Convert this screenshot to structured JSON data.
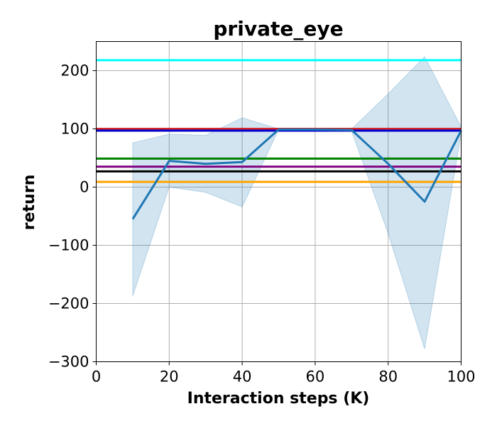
{
  "chart_data": {
    "type": "line",
    "title": "private_eye",
    "xlabel": "Interaction steps (K)",
    "ylabel": "return",
    "xlim": [
      0,
      100
    ],
    "ylim": [
      -300,
      250
    ],
    "xticks": [
      0,
      20,
      40,
      60,
      80,
      100
    ],
    "yticks": [
      -300,
      -200,
      -100,
      0,
      100,
      200
    ],
    "ytick_labels": [
      "−300",
      "−200",
      "−100",
      "0",
      "100",
      "200"
    ],
    "grid": true,
    "series": [
      {
        "color": "#1f77b4",
        "x": [
          10,
          20,
          30,
          40,
          50,
          60,
          70,
          80,
          90,
          100
        ],
        "y": [
          -55,
          45,
          40,
          43,
          99,
          99,
          98,
          40,
          -25,
          97
        ],
        "band_upper": [
          76,
          91,
          89,
          119,
          100,
          100,
          100,
          160,
          224,
          103
        ],
        "band_lower": [
          -187,
          0,
          -9,
          -34,
          99,
          99,
          96,
          -80,
          -278,
          92
        ]
      }
    ],
    "hlines": [
      {
        "y": 218,
        "color": "#00ffff"
      },
      {
        "y": 100,
        "color": "#d62728"
      },
      {
        "y": 97,
        "color": "#0000cc"
      },
      {
        "y": 49,
        "color": "#008000"
      },
      {
        "y": 35,
        "color": "#800080"
      },
      {
        "y": 27,
        "color": "#000000"
      },
      {
        "y": 9,
        "color": "#ffa500"
      }
    ]
  }
}
